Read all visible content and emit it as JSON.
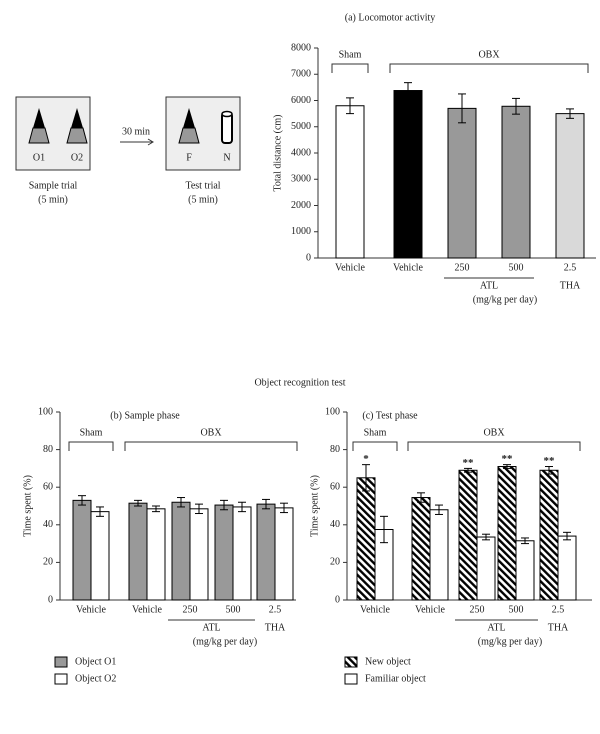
{
  "diagram": {
    "sample_box": {
      "labels": [
        "O1",
        "O2"
      ],
      "title": "Sample trial",
      "duration": "(5 min)"
    },
    "arrow_label": "30 min",
    "test_box": {
      "labels": [
        "F",
        "N"
      ],
      "title": "Test trial",
      "duration": "(5 min)"
    }
  },
  "figure_title": "Object recognition test",
  "chart_data": [
    {
      "type": "bar",
      "title": "(a) Locomotor activity",
      "y_label": "Total distance (cm)",
      "categories": [
        "Vehicle",
        "Vehicle",
        "250",
        "500",
        "2.5"
      ],
      "group": [
        "Sham",
        "OBX",
        "OBX",
        "OBX",
        "OBX"
      ],
      "subgroup": [
        null,
        null,
        "ATL",
        "ATL",
        "THA"
      ],
      "unit_label": "(mg/kg per day)",
      "values": [
        5800,
        6380,
        5700,
        5780,
        5500
      ],
      "errors": [
        300,
        300,
        550,
        300,
        180
      ],
      "colors": [
        "#ffffff",
        "#000000",
        "#999999",
        "#999999",
        "#d9d9d9"
      ],
      "ylim": [
        0,
        8000
      ],
      "yticks": [
        0,
        1000,
        2000,
        3000,
        4000,
        5000,
        6000,
        7000,
        8000
      ]
    },
    {
      "type": "bar",
      "title": "(b) Sample phase",
      "y_label": "Time spent (%)",
      "categories": [
        "Vehicle",
        "Vehicle",
        "250",
        "500",
        "2.5"
      ],
      "group": [
        "Sham",
        "OBX",
        "OBX",
        "OBX",
        "OBX"
      ],
      "subgroup": [
        null,
        null,
        "ATL",
        "ATL",
        "THA"
      ],
      "unit_label": "(mg/kg per day)",
      "series": [
        {
          "name": "Object O1",
          "color": "#999999",
          "values": [
            53,
            51.5,
            52,
            50.5,
            51
          ],
          "errors": [
            2.5,
            1.5,
            2.5,
            2.5,
            2.5
          ]
        },
        {
          "name": "Object O2",
          "color": "#ffffff",
          "values": [
            47,
            48.5,
            48.5,
            49.5,
            49
          ],
          "errors": [
            2.5,
            1.5,
            2.5,
            2.5,
            2.5
          ]
        }
      ],
      "ylim": [
        0,
        100
      ],
      "yticks": [
        0,
        20,
        40,
        60,
        80,
        100
      ]
    },
    {
      "type": "bar",
      "title": "(c) Test phase",
      "y_label": "Time spent (%)",
      "categories": [
        "Vehicle",
        "Vehicle",
        "250",
        "500",
        "2.5"
      ],
      "group": [
        "Sham",
        "OBX",
        "OBX",
        "OBX",
        "OBX"
      ],
      "subgroup": [
        null,
        null,
        "ATL",
        "ATL",
        "THA"
      ],
      "unit_label": "(mg/kg per day)",
      "series": [
        {
          "name": "New object",
          "color": "#000000",
          "hatch": true,
          "values": [
            65,
            54.5,
            69,
            71,
            69
          ],
          "errors": [
            7,
            2.5,
            1,
            1,
            2
          ],
          "significance": [
            "*",
            null,
            "**",
            "**",
            "**"
          ]
        },
        {
          "name": "Familiar object",
          "color": "#ffffff",
          "values": [
            37.5,
            48,
            33.5,
            31.5,
            34
          ],
          "errors": [
            7,
            2.5,
            1.5,
            1.5,
            2
          ]
        }
      ],
      "ylim": [
        0,
        100
      ],
      "yticks": [
        0,
        20,
        40,
        60,
        80,
        100
      ]
    }
  ]
}
